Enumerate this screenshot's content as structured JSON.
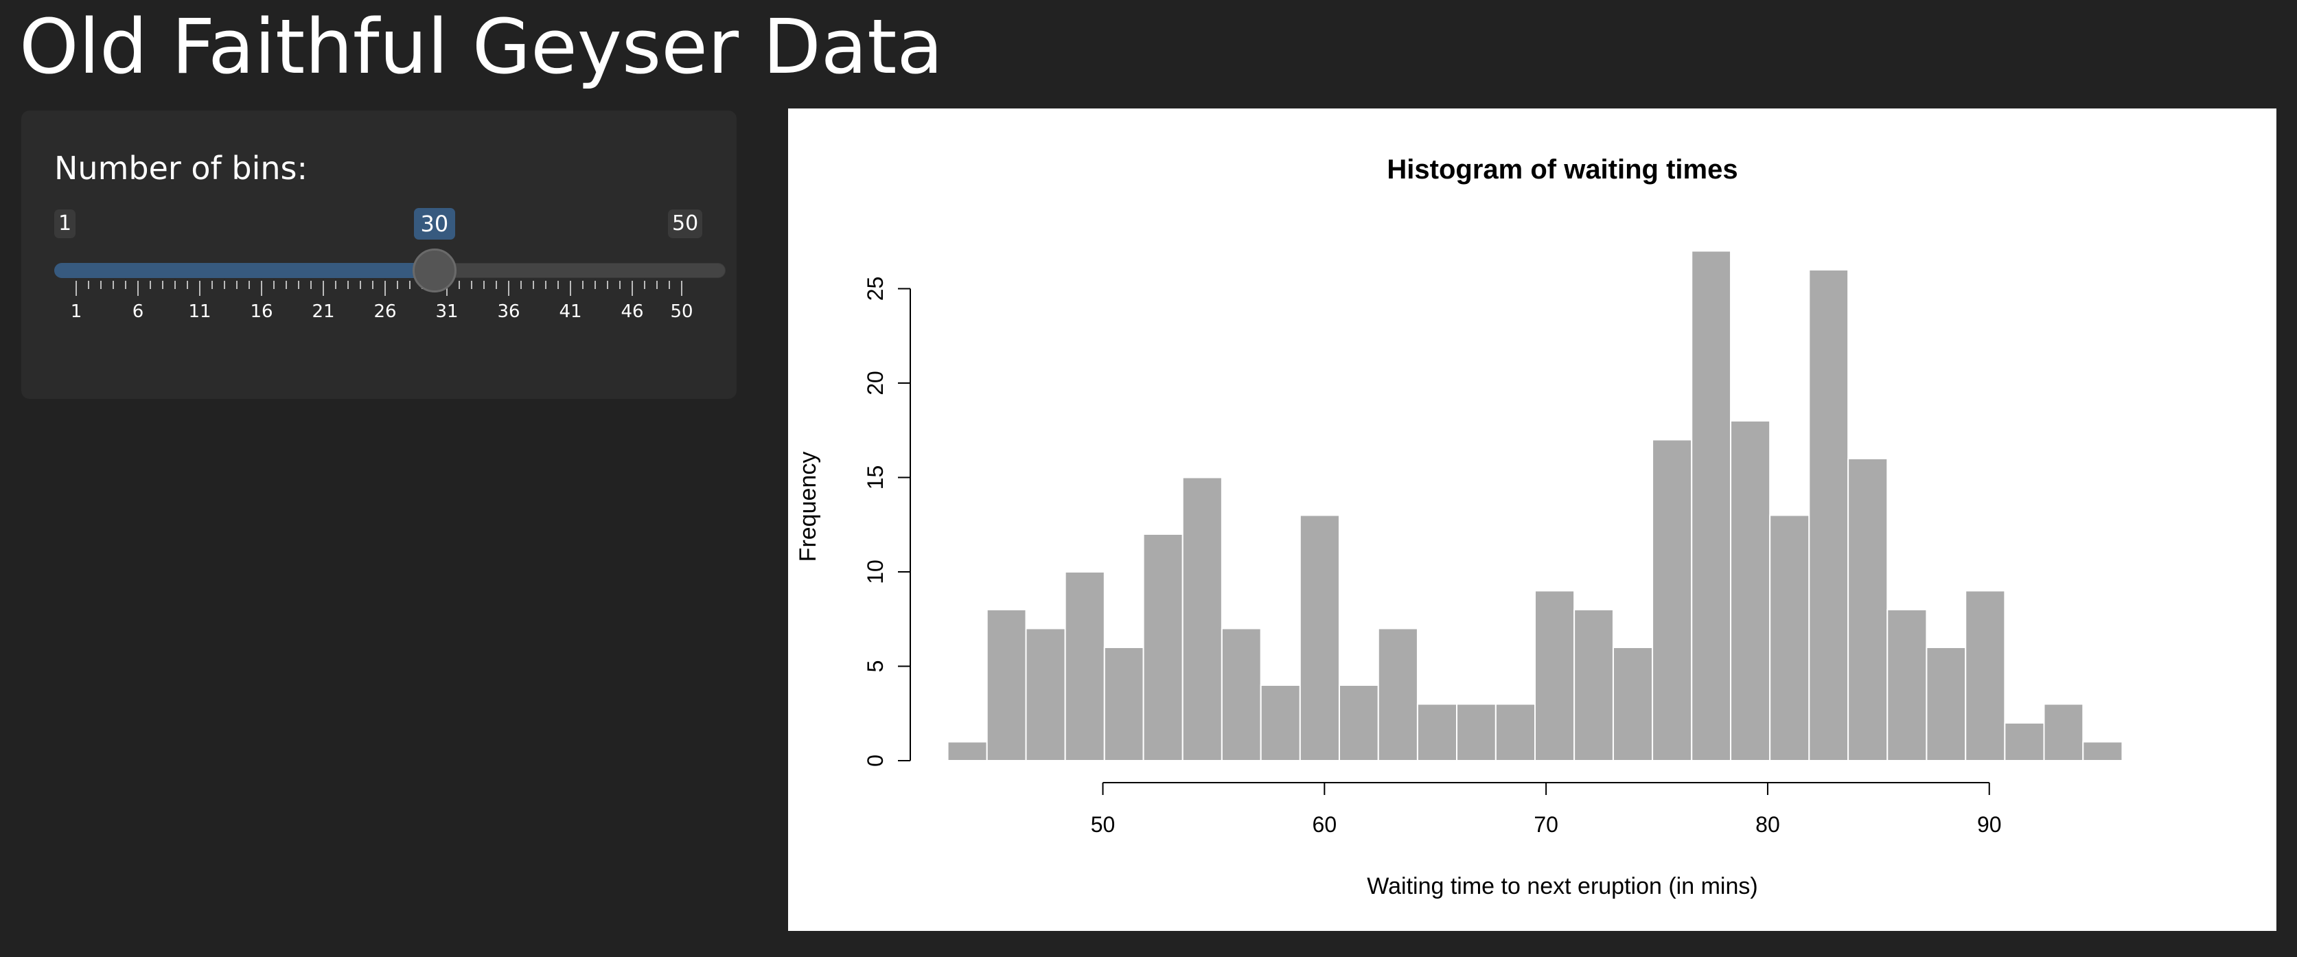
{
  "app": {
    "title": "Old Faithful Geyser Data"
  },
  "sidebar": {
    "control_label": "Number of bins:",
    "slider": {
      "min": 1,
      "max": 50,
      "value": 30,
      "min_label": "1",
      "max_label": "50",
      "value_label": "30",
      "major_ticks": [
        "1",
        "6",
        "11",
        "16",
        "21",
        "26",
        "31",
        "36",
        "41",
        "46",
        "50"
      ],
      "accent_color": "#375a7f"
    }
  },
  "chart_data": {
    "type": "bar",
    "title": "Histogram of waiting times",
    "xlabel": "Waiting time to next eruption (in mins)",
    "ylabel": "Frequency",
    "bin_edges": [
      43.0,
      44.77,
      46.53,
      48.3,
      50.07,
      51.83,
      53.6,
      55.37,
      57.13,
      58.9,
      60.67,
      62.43,
      64.2,
      65.97,
      67.73,
      69.5,
      71.27,
      73.03,
      74.8,
      76.57,
      78.33,
      80.1,
      81.87,
      83.63,
      85.4,
      87.17,
      88.93,
      90.7,
      92.47,
      94.23,
      96.0
    ],
    "values": [
      1,
      8,
      7,
      10,
      6,
      12,
      15,
      7,
      4,
      13,
      4,
      7,
      3,
      3,
      3,
      9,
      8,
      6,
      17,
      27,
      18,
      13,
      26,
      16,
      8,
      6,
      9,
      2,
      3,
      1
    ],
    "xticks": [
      50,
      60,
      70,
      80,
      90
    ],
    "yticks": [
      0,
      5,
      10,
      15,
      20,
      25
    ],
    "xlim": [
      41,
      98
    ],
    "ylim": [
      0,
      27
    ],
    "bar_color": "#aaaaaa",
    "bar_border": "#ffffff",
    "grid": false,
    "legend": "none"
  }
}
